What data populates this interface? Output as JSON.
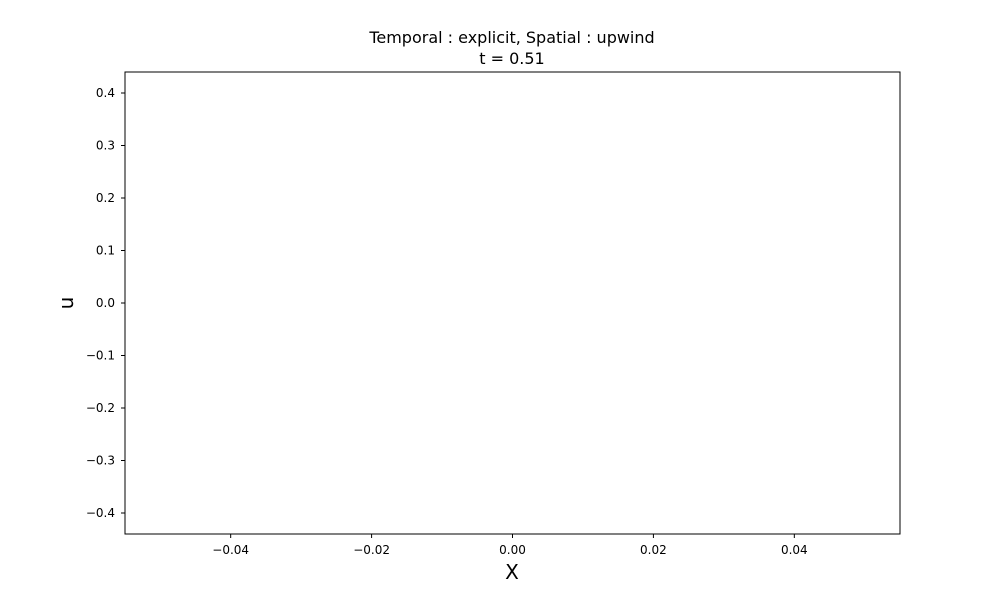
{
  "chart_data": {
    "type": "line",
    "title": "Temporal : explicit, Spatial : upwind",
    "subtitle": "t = 0.51",
    "xlabel": "X",
    "ylabel": "u",
    "xlim": [
      -0.055,
      0.055
    ],
    "ylim": [
      -0.44,
      0.44
    ],
    "x_ticks": [
      -0.04,
      -0.02,
      0.0,
      0.02,
      0.04
    ],
    "x_tick_labels": [
      "−0.04",
      "−0.02",
      "0.00",
      "0.02",
      "0.04"
    ],
    "y_ticks": [
      0.4,
      0.3,
      0.2,
      0.1,
      0.0,
      -0.1,
      -0.2,
      -0.3,
      -0.4
    ],
    "y_tick_labels": [
      "0.4",
      "0.3",
      "0.2",
      "0.1",
      "0.0",
      "−0.1",
      "−0.2",
      "−0.3",
      "−0.4"
    ],
    "series": [],
    "grid": false,
    "legend": "none"
  }
}
